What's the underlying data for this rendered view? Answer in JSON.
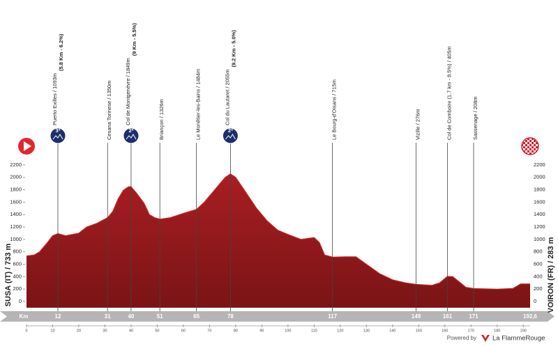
{
  "chart_data": {
    "type": "area",
    "x_axis_label": "Km",
    "start_label": "SUSA (IT) / 733 m",
    "finish_label": "VOIRON (FR) / 283 m",
    "distance": {
      "value": 192.6,
      "label": "192,6"
    },
    "color": "#8e1a1c",
    "x": [
      0,
      3,
      5,
      8,
      10,
      12,
      15,
      20,
      23,
      27,
      31,
      33,
      35,
      37,
      39,
      40,
      42,
      45,
      47,
      49,
      51,
      55,
      60,
      65,
      68,
      72,
      76,
      78,
      80,
      84,
      88,
      92,
      96,
      100,
      105,
      110,
      112,
      114,
      117,
      122,
      126,
      130,
      135,
      140,
      145,
      149,
      155,
      158,
      161,
      163,
      166,
      168,
      171,
      180,
      186,
      189,
      192.6
    ],
    "values": [
      733,
      750,
      800,
      950,
      1060,
      1093,
      1060,
      1100,
      1200,
      1260,
      1350,
      1450,
      1650,
      1790,
      1849,
      1849,
      1750,
      1580,
      1400,
      1350,
      1326,
      1350,
      1420,
      1484,
      1600,
      1800,
      2000,
      2055,
      2000,
      1750,
      1500,
      1300,
      1150,
      1080,
      1000,
      1030,
      950,
      750,
      715,
      720,
      720,
      600,
      450,
      350,
      300,
      276,
      260,
      300,
      405,
      400,
      300,
      230,
      208,
      200,
      210,
      283,
      283
    ],
    "xlim": [
      0,
      192.6
    ],
    "xticks": [
      0,
      10,
      20,
      30,
      40,
      50,
      60,
      70,
      80,
      90,
      100,
      110,
      120,
      130,
      140,
      150,
      160,
      170,
      180,
      190
    ],
    "ylim": [
      -100,
      2300
    ],
    "yticks": [
      0,
      200,
      400,
      600,
      800,
      1000,
      1200,
      1400,
      1600,
      1800,
      2000,
      2200
    ],
    "waypoints": [
      {
        "km": 12,
        "name": "Puerto Exilles / 1093m",
        "climb": "(5.8 Km - 6.2%)",
        "category": "3ª"
      },
      {
        "km": 31,
        "name": "Cesana Torinese / 1350m"
      },
      {
        "km": 40,
        "name": "Col de Montgenèvre / 1849m",
        "climb": "(9 Km - 5.5%)",
        "category": "2ª"
      },
      {
        "km": 51,
        "name": "Briançon / 1326m"
      },
      {
        "km": 65,
        "name": "Le Monêtier-les-Bains / 1484m"
      },
      {
        "km": 78,
        "name": "Col du Lautaret / 2055m",
        "climb": "(9.2 Km - 5.0%)",
        "category": "2ª"
      },
      {
        "km": 117,
        "name": "Le Bourg-d'Oisans / 715m"
      },
      {
        "km": 149,
        "name": "Vizille / 276m"
      },
      {
        "km": 161,
        "name": "Col de Comboire (1.7 km - 8.5%) / 405m"
      },
      {
        "km": 171,
        "name": "Sassenage / 208m"
      }
    ]
  },
  "footer": {
    "powered": "Powered by",
    "brand": "La FlammeRouge"
  }
}
